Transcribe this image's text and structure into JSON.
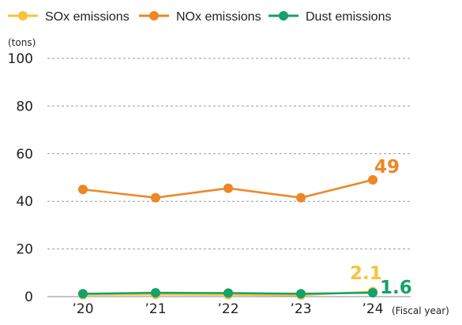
{
  "chart_data": {
    "type": "line",
    "ylabel": "(tons)",
    "xlabel": "(Fiscal year)",
    "ylim": [
      0,
      100
    ],
    "yticks": [
      "0",
      "20",
      "40",
      "60",
      "80",
      "100"
    ],
    "categories": [
      "’20",
      "’21",
      "’22",
      "’23",
      "’24"
    ],
    "grid": "horizontal-dashed",
    "legend_position": "top",
    "series": [
      {
        "name": "SOx emissions",
        "color": "#f7c33c",
        "values": [
          0.8,
          0.9,
          0.8,
          0.6,
          2.1
        ],
        "end_label": "2.1"
      },
      {
        "name": "NOx emissions",
        "color": "#ee8624",
        "values": [
          45,
          41.5,
          45.5,
          41.5,
          49
        ],
        "end_label": "49"
      },
      {
        "name": "Dust emissions",
        "color": "#16a06a",
        "values": [
          1.2,
          1.6,
          1.5,
          1.2,
          1.6
        ],
        "end_label": "1.6"
      }
    ]
  }
}
